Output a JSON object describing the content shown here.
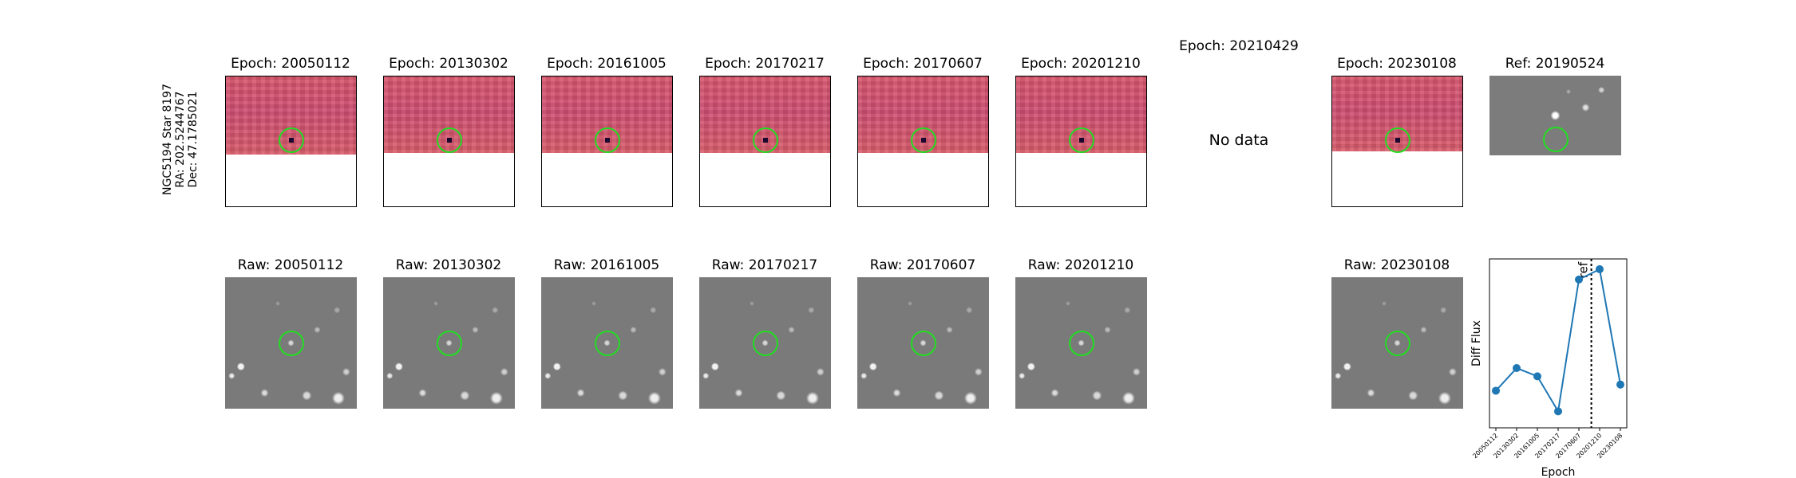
{
  "side_label": [
    "NGC5194 Star 8197",
    "RA: 202.5244767",
    "Dec: 47.1785021"
  ],
  "top_titles": [
    "Epoch: 20050112",
    "Epoch: 20130302",
    "Epoch: 20161005",
    "Epoch: 20170217",
    "Epoch: 20170607",
    "Epoch: 20201210",
    "Epoch: 20210429",
    "Epoch: 20230108",
    "Ref: 20190524"
  ],
  "no_data_text": "No data",
  "bottom_titles": [
    "Raw: 20050112",
    "Raw: 20130302",
    "Raw: 20161005",
    "Raw: 20170217",
    "Raw: 20170607",
    "Raw: 20201210",
    "Raw: 20230108"
  ],
  "chart_data": {
    "type": "line",
    "xlabel": "Epoch",
    "ylabel": "Diff Flux",
    "categories": [
      "20050112",
      "20130302",
      "20161005",
      "20170217",
      "20170607",
      "20201210",
      "20230108"
    ],
    "values": [
      0.18,
      0.29,
      0.25,
      0.08,
      0.72,
      0.77,
      0.21
    ],
    "ylim": [
      0,
      0.82
    ],
    "ref_marker": {
      "label": "ref",
      "position": 4.6
    },
    "line_color": "#1f77b4",
    "grid": false
  }
}
